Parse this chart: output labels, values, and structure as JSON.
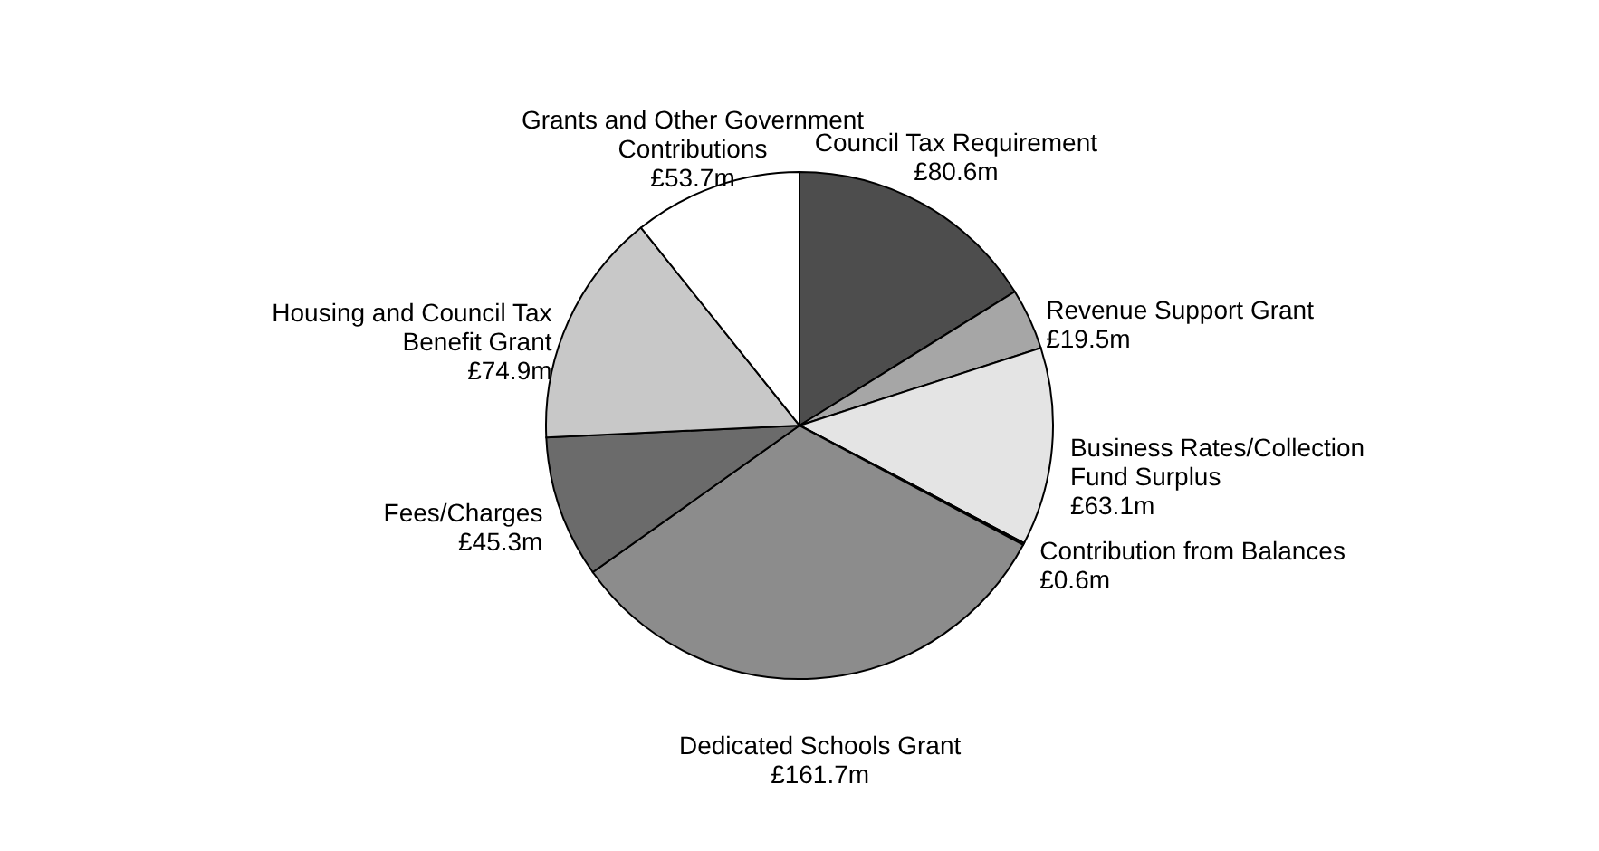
{
  "chart_data": {
    "type": "pie",
    "categories": [
      "Council Tax Requirement",
      "Revenue Support Grant",
      "Business Rates/Collection Fund Surplus",
      "Contribution from Balances",
      "Dedicated Schools Grant",
      "Fees/Charges",
      "Housing and Council Tax Benefit Grant",
      "Grants and Other Government Contributions"
    ],
    "values": [
      80.6,
      19.5,
      63.1,
      0.6,
      161.7,
      45.3,
      74.9,
      53.7
    ],
    "colors": [
      "#4d4d4d",
      "#a6a6a6",
      "#e4e4e4",
      "#333333",
      "#8c8c8c",
      "#6b6b6b",
      "#c8c8c8",
      "#ffffff"
    ],
    "value_labels": [
      "£80.6m",
      "£19.5m",
      "£63.1m",
      "£0.6m",
      "£161.7m",
      "£45.3m",
      "£74.9m",
      "£53.7m"
    ]
  }
}
